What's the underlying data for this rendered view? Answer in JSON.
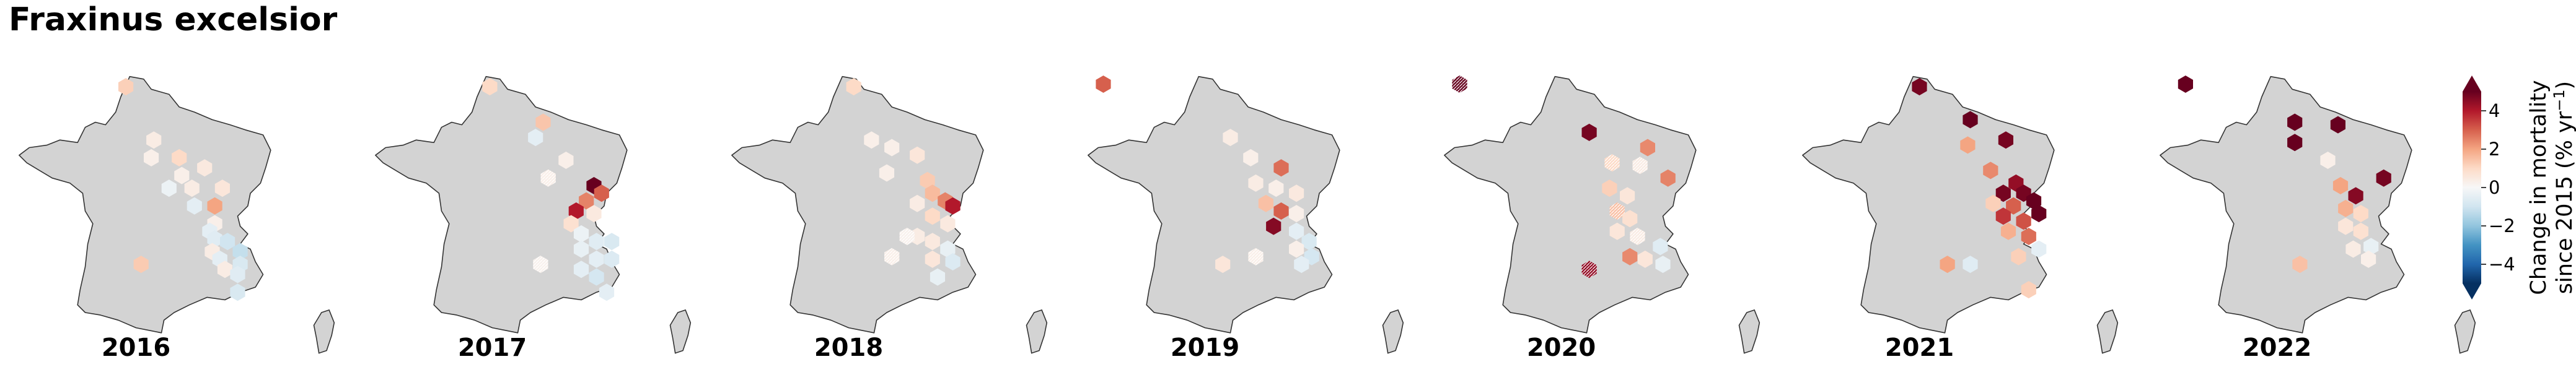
{
  "title": "Fraxinus excelsior",
  "colors": {
    "land": "#d3d3d3",
    "coast": "#333333",
    "scale": [
      "#053061",
      "#2166ac",
      "#4393c3",
      "#92c5de",
      "#d1e5f0",
      "#f7f7f7",
      "#fddbc7",
      "#f4a582",
      "#d6604d",
      "#b2182b",
      "#67001f"
    ]
  },
  "colorbar": {
    "label_line1": "Change in mortality",
    "label_line2": "since 2015 (% yr",
    "label_sup": "−1",
    "label_close": ")",
    "min": -5,
    "max": 5,
    "extend": "both",
    "ticks": [
      {
        "value": 4,
        "label": "4"
      },
      {
        "value": 2,
        "label": "2"
      },
      {
        "value": 0,
        "label": "0"
      },
      {
        "value": -2,
        "label": "−2"
      },
      {
        "value": -4,
        "label": "−4"
      }
    ]
  },
  "panels": [
    {
      "year": "2016",
      "cells": [
        [
          -0.18,
          -0.78,
          1.2,
          false
        ],
        [
          0.04,
          -0.36,
          0.4,
          false
        ],
        [
          0.02,
          -0.22,
          0.3,
          false
        ],
        [
          0.24,
          -0.22,
          1.0,
          false
        ],
        [
          0.44,
          -0.14,
          0.5,
          false
        ],
        [
          0.26,
          -0.08,
          0.3,
          false
        ],
        [
          0.16,
          0.02,
          -0.3,
          false
        ],
        [
          0.34,
          0.02,
          0.4,
          false
        ],
        [
          0.58,
          0.02,
          0.6,
          false
        ],
        [
          0.52,
          0.16,
          2.0,
          false
        ],
        [
          0.36,
          0.16,
          -0.5,
          false
        ],
        [
          0.52,
          0.3,
          0.3,
          false
        ],
        [
          0.48,
          0.36,
          -0.5,
          false
        ],
        [
          0.52,
          0.42,
          -0.6,
          false
        ],
        [
          0.62,
          0.44,
          -1.0,
          false
        ],
        [
          0.5,
          0.52,
          0.4,
          false
        ],
        [
          0.72,
          0.52,
          -1.2,
          false
        ],
        [
          0.56,
          0.58,
          -0.5,
          false
        ],
        [
          0.72,
          0.62,
          -0.8,
          false
        ],
        [
          0.6,
          0.66,
          0.4,
          false
        ],
        [
          0.7,
          0.7,
          -0.6,
          false
        ],
        [
          -0.06,
          0.62,
          1.3,
          false
        ],
        [
          0.7,
          0.84,
          -0.8,
          false
        ]
      ]
    },
    {
      "year": "2017",
      "cells": [
        [
          -0.12,
          -0.78,
          1.0,
          false
        ],
        [
          0.3,
          -0.5,
          1.4,
          false
        ],
        [
          0.24,
          -0.38,
          -0.5,
          false
        ],
        [
          0.48,
          -0.2,
          0.3,
          false
        ],
        [
          0.34,
          -0.06,
          0.3,
          true
        ],
        [
          0.7,
          0.0,
          5.0,
          false
        ],
        [
          0.76,
          0.06,
          3.0,
          false
        ],
        [
          0.64,
          0.12,
          2.5,
          false
        ],
        [
          0.56,
          0.2,
          4.0,
          false
        ],
        [
          0.7,
          0.22,
          0.5,
          false
        ],
        [
          0.52,
          0.3,
          0.8,
          false
        ],
        [
          0.6,
          0.38,
          -0.3,
          false
        ],
        [
          0.72,
          0.44,
          -0.6,
          false
        ],
        [
          0.84,
          0.44,
          -0.8,
          false
        ],
        [
          0.6,
          0.5,
          -0.4,
          false
        ],
        [
          0.72,
          0.58,
          -0.5,
          false
        ],
        [
          0.84,
          0.58,
          -0.7,
          false
        ],
        [
          0.6,
          0.66,
          -0.5,
          false
        ],
        [
          0.72,
          0.72,
          -0.9,
          false
        ],
        [
          0.8,
          0.84,
          -0.5,
          false
        ],
        [
          0.28,
          0.62,
          0.2,
          true
        ],
        [
          0.24,
          1.5,
          0.8,
          false
        ]
      ]
    },
    {
      "year": "2018",
      "cells": [
        [
          -0.06,
          -0.78,
          1.0,
          false
        ],
        [
          0.08,
          -0.36,
          0.3,
          false
        ],
        [
          0.24,
          -0.3,
          0.3,
          false
        ],
        [
          0.44,
          -0.24,
          0.6,
          false
        ],
        [
          0.2,
          -0.1,
          0.3,
          false
        ],
        [
          0.52,
          -0.04,
          1.3,
          false
        ],
        [
          0.56,
          0.06,
          1.6,
          false
        ],
        [
          0.66,
          0.12,
          2.5,
          false
        ],
        [
          0.72,
          0.16,
          4.0,
          false
        ],
        [
          0.44,
          0.14,
          0.4,
          false
        ],
        [
          0.56,
          0.24,
          1.0,
          false
        ],
        [
          0.68,
          0.3,
          0.5,
          false
        ],
        [
          0.44,
          0.4,
          0.4,
          false
        ],
        [
          0.56,
          0.44,
          0.5,
          false
        ],
        [
          0.68,
          0.5,
          -0.4,
          false
        ],
        [
          0.56,
          0.58,
          0.6,
          false
        ],
        [
          0.72,
          0.6,
          -0.7,
          false
        ],
        [
          0.6,
          0.72,
          -0.4,
          false
        ],
        [
          0.24,
          0.56,
          0.3,
          true
        ],
        [
          0.36,
          0.4,
          0.2,
          true
        ],
        [
          0.18,
          1.5,
          0.8,
          false
        ]
      ]
    },
    {
      "year": "2019",
      "cells": [
        [
          -0.9,
          -0.8,
          3.0,
          false
        ],
        [
          0.1,
          -0.38,
          0.4,
          false
        ],
        [
          0.26,
          -0.22,
          0.3,
          false
        ],
        [
          0.5,
          -0.14,
          2.8,
          false
        ],
        [
          0.3,
          -0.02,
          0.4,
          false
        ],
        [
          0.46,
          0.02,
          0.3,
          false
        ],
        [
          0.62,
          0.06,
          0.5,
          false
        ],
        [
          0.38,
          0.14,
          1.5,
          false
        ],
        [
          0.5,
          0.2,
          3.0,
          false
        ],
        [
          0.44,
          0.32,
          4.6,
          false
        ],
        [
          0.62,
          0.22,
          0.3,
          false
        ],
        [
          0.62,
          0.36,
          -0.5,
          false
        ],
        [
          0.72,
          0.44,
          -0.8,
          false
        ],
        [
          0.74,
          0.56,
          -0.9,
          false
        ],
        [
          0.62,
          0.5,
          0.3,
          false
        ],
        [
          0.66,
          0.62,
          -0.5,
          false
        ],
        [
          0.04,
          0.62,
          0.6,
          false
        ],
        [
          0.3,
          0.56,
          0.3,
          true
        ],
        [
          0.22,
          1.5,
          0.6,
          false
        ]
      ]
    },
    {
      "year": "2020",
      "cells": [
        [
          -0.9,
          -0.8,
          5.0,
          true
        ],
        [
          0.12,
          -0.42,
          4.8,
          false
        ],
        [
          0.58,
          -0.3,
          2.4,
          false
        ],
        [
          0.3,
          -0.18,
          1.0,
          true
        ],
        [
          0.52,
          -0.16,
          0.4,
          true
        ],
        [
          0.74,
          -0.06,
          2.5,
          false
        ],
        [
          0.28,
          0.02,
          1.2,
          false
        ],
        [
          0.42,
          0.08,
          0.6,
          false
        ],
        [
          0.34,
          0.2,
          1.5,
          true
        ],
        [
          0.44,
          0.26,
          0.8,
          false
        ],
        [
          0.34,
          0.36,
          0.6,
          false
        ],
        [
          0.5,
          0.4,
          0.4,
          true
        ],
        [
          0.44,
          0.56,
          2.4,
          false
        ],
        [
          0.56,
          0.58,
          0.6,
          false
        ],
        [
          0.68,
          0.48,
          -0.6,
          false
        ],
        [
          0.7,
          0.62,
          -0.4,
          false
        ],
        [
          0.12,
          0.66,
          4.4,
          true
        ],
        [
          0.22,
          1.5,
          0.6,
          false
        ]
      ]
    },
    {
      "year": "2021",
      "cells": [
        [
          -0.1,
          -0.78,
          4.8,
          false
        ],
        [
          0.3,
          -0.52,
          5.0,
          false
        ],
        [
          0.58,
          -0.36,
          4.8,
          false
        ],
        [
          0.28,
          -0.32,
          2.0,
          false
        ],
        [
          0.46,
          -0.12,
          2.4,
          false
        ],
        [
          0.66,
          -0.02,
          4.4,
          false
        ],
        [
          0.56,
          0.06,
          4.8,
          false
        ],
        [
          0.72,
          0.06,
          4.8,
          false
        ],
        [
          0.8,
          0.12,
          5.0,
          false
        ],
        [
          0.64,
          0.16,
          3.0,
          false
        ],
        [
          0.48,
          0.14,
          1.2,
          false
        ],
        [
          0.56,
          0.24,
          3.6,
          false
        ],
        [
          0.72,
          0.28,
          3.2,
          false
        ],
        [
          0.84,
          0.22,
          5.0,
          false
        ],
        [
          0.6,
          0.36,
          1.8,
          false
        ],
        [
          0.76,
          0.4,
          2.8,
          false
        ],
        [
          0.84,
          0.5,
          -0.5,
          false
        ],
        [
          0.68,
          0.56,
          1.2,
          false
        ],
        [
          0.12,
          0.62,
          2.0,
          false
        ],
        [
          0.3,
          0.62,
          -0.6,
          false
        ],
        [
          0.76,
          0.82,
          1.2,
          false
        ]
      ]
    },
    {
      "year": "2022",
      "cells": [
        [
          -0.82,
          -0.8,
          5.0,
          false
        ],
        [
          0.04,
          -0.5,
          5.0,
          false
        ],
        [
          0.38,
          -0.48,
          5.0,
          false
        ],
        [
          0.04,
          -0.34,
          5.0,
          false
        ],
        [
          0.3,
          -0.2,
          0.3,
          false
        ],
        [
          0.74,
          -0.06,
          4.8,
          false
        ],
        [
          0.4,
          0.0,
          2.0,
          false
        ],
        [
          0.52,
          0.08,
          4.6,
          false
        ],
        [
          0.44,
          0.18,
          1.8,
          false
        ],
        [
          0.56,
          0.22,
          1.0,
          false
        ],
        [
          0.44,
          0.32,
          0.6,
          false
        ],
        [
          0.56,
          0.36,
          0.8,
          false
        ],
        [
          0.64,
          0.48,
          -0.4,
          false
        ],
        [
          0.5,
          0.5,
          0.4,
          false
        ],
        [
          0.62,
          0.58,
          0.3,
          false
        ],
        [
          0.08,
          0.62,
          1.5,
          false
        ],
        [
          0.22,
          1.5,
          0.6,
          false
        ]
      ]
    }
  ]
}
